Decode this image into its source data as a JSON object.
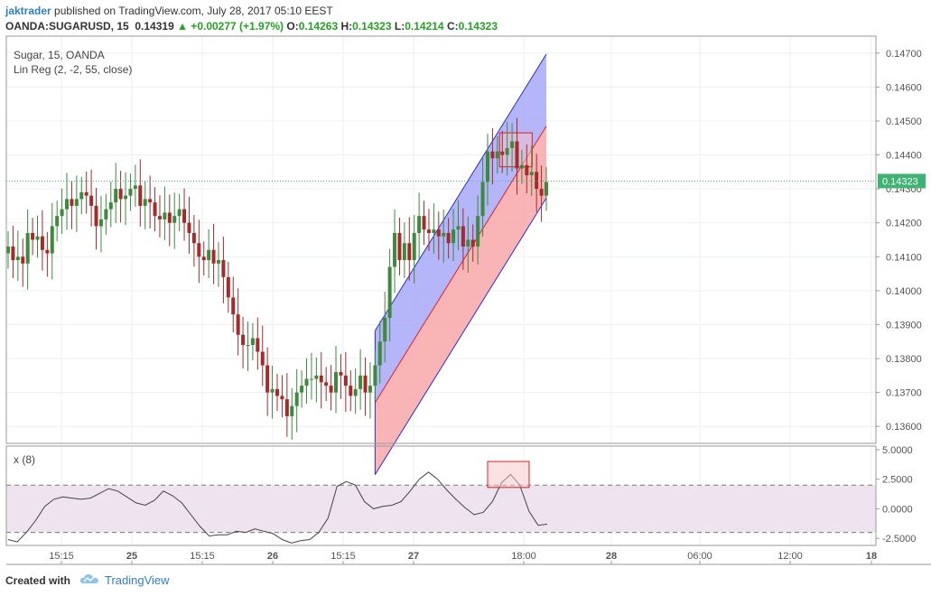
{
  "header": {
    "author": "jaktrader",
    "published_text": "published on TradingView.com, July 28, 2017 05:10 EEST",
    "symbol": "OANDA:SUGARUSD, 15",
    "last": "0.14319",
    "change": "▲ +0.00277 (+1.97%)",
    "o_label": "O:",
    "o_value": "0.14263",
    "h_label": "H:",
    "h_value": "0.14323",
    "l_label": "L:",
    "l_value": "0.14214",
    "c_label": "C:",
    "c_value": "0.14323"
  },
  "legend": {
    "title": "Sugar, 15, OANDA",
    "indicator": "Lin Reg (2, -2, 55, close)",
    "osc": "x (8)"
  },
  "footer": {
    "created_with": "Created with",
    "brand": "TradingView"
  },
  "colors": {
    "up_candle": "#3d8a3d",
    "down_candle": "#a52a2a",
    "upper_band_fill": "#a8a8f8",
    "lower_band_fill": "#f8a8a8",
    "band_line_blue": "#2b2bd9",
    "band_line_red": "#e02020",
    "osc_band": "#efe3f0",
    "last_price_tag": "#3fb373"
  },
  "chart_data": [
    {
      "type": "candlestick",
      "title": "Sugar, 15, OANDA",
      "ylim": [
        0.1355,
        0.1475
      ],
      "yticks": [
        "0.14700",
        "0.14600",
        "0.14500",
        "0.14400",
        "0.14300",
        "0.14200",
        "0.14100",
        "0.14000",
        "0.13900",
        "0.13800",
        "0.13700",
        "0.13600"
      ],
      "xtick_labels": [
        "15:15",
        "25",
        "15:15",
        "26",
        "15:15",
        "27",
        "18:00",
        "28",
        "06:00",
        "12:00",
        "18"
      ],
      "last_price": "0.14323",
      "close": [
        0.1413,
        0.1409,
        0.141,
        0.1408,
        0.1417,
        0.1415,
        0.1416,
        0.1412,
        0.1411,
        0.1419,
        0.1422,
        0.1424,
        0.1427,
        0.1425,
        0.1427,
        0.1429,
        0.1428,
        0.1425,
        0.1419,
        0.1421,
        0.1424,
        0.1426,
        0.143,
        0.1427,
        0.1428,
        0.143,
        0.1431,
        0.1425,
        0.1427,
        0.1426,
        0.1422,
        0.1421,
        0.1423,
        0.142,
        0.1422,
        0.1424,
        0.142,
        0.1417,
        0.1414,
        0.141,
        0.1409,
        0.1412,
        0.1408,
        0.1409,
        0.1404,
        0.1398,
        0.1393,
        0.1387,
        0.1384,
        0.1384,
        0.1386,
        0.1382,
        0.1378,
        0.137,
        0.1371,
        0.1369,
        0.1368,
        0.1363,
        0.1366,
        0.137,
        0.1372,
        0.1374,
        0.1374,
        0.1375,
        0.1373,
        0.1372,
        0.137,
        0.1376,
        0.1375,
        0.1372,
        0.1369,
        0.1371,
        0.1375,
        0.137,
        0.1372,
        0.1378,
        0.1385,
        0.1392,
        0.1407,
        0.1417,
        0.1409,
        0.1414,
        0.1409,
        0.1417,
        0.1422,
        0.1418,
        0.1417,
        0.1418,
        0.1416,
        0.1417,
        0.1414,
        0.1418,
        0.1419,
        0.1413,
        0.1415,
        0.1413,
        0.1422,
        0.1432,
        0.1441,
        0.1439,
        0.1441,
        0.144,
        0.1442,
        0.1444,
        0.1436,
        0.1437,
        0.1434,
        0.1435,
        0.143,
        0.1428,
        0.1432
      ]
    },
    {
      "type": "line",
      "title": "x (8)",
      "ylim": [
        -3.1,
        5.3
      ],
      "yticks": [
        "5.0000",
        "2.5000",
        "0.0000",
        "-2.5000"
      ],
      "bands": [
        2.0,
        -2.0
      ],
      "values": [
        -2.6,
        -2.8,
        -2.0,
        -1.0,
        0.2,
        0.8,
        1.0,
        0.9,
        0.8,
        0.9,
        1.3,
        1.7,
        1.5,
        1.0,
        0.5,
        0.3,
        0.7,
        1.5,
        1.1,
        0.5,
        -0.5,
        -1.5,
        -2.3,
        -2.2,
        -2.2,
        -1.9,
        -2.0,
        -1.7,
        -1.9,
        -2.1,
        -2.6,
        -2.9,
        -2.7,
        -2.6,
        -2.0,
        -0.8,
        1.9,
        2.3,
        2.0,
        0.6,
        0.0,
        0.2,
        0.3,
        0.6,
        1.5,
        2.5,
        3.1,
        2.5,
        1.6,
        0.8,
        0.1,
        -0.5,
        -0.3,
        0.6,
        2.2,
        2.9,
        2.0,
        -0.2,
        -1.4,
        -1.3
      ]
    }
  ]
}
